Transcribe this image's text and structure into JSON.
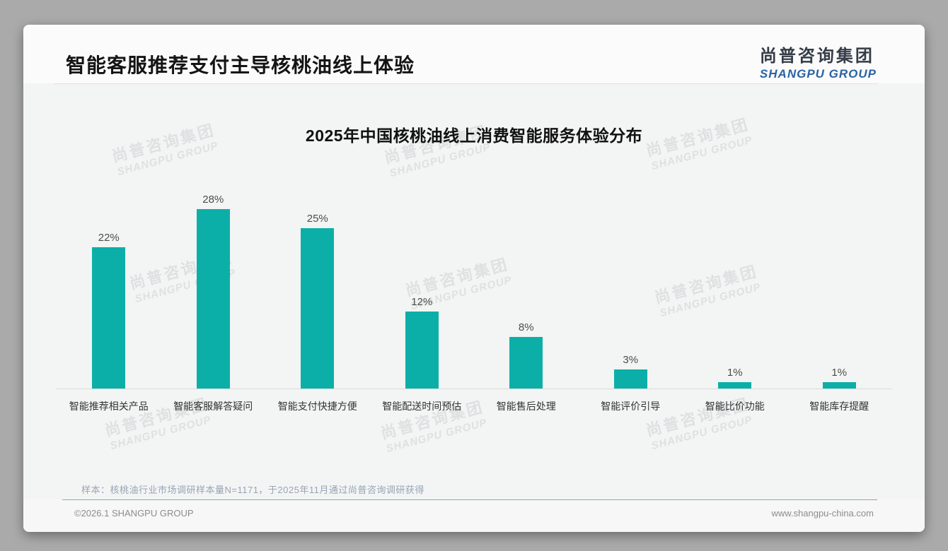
{
  "header": {
    "title": "智能客服推荐支付主导核桃油线上体验",
    "logo": {
      "cn": "尚普咨询集团",
      "en": "SHANGPU GROUP"
    }
  },
  "chart_data": {
    "type": "bar",
    "title": "2025年中国核桃油线上消费智能服务体验分布",
    "categories": [
      "智能推荐相关产品",
      "智能客服解答疑问",
      "智能支付快捷方便",
      "智能配送时间预估",
      "智能售后处理",
      "智能评价引导",
      "智能比价功能",
      "智能库存提醒"
    ],
    "values": [
      22,
      28,
      25,
      12,
      8,
      3,
      1,
      1
    ],
    "value_labels": [
      "22%",
      "28%",
      "25%",
      "12%",
      "8%",
      "3%",
      "1%",
      "1%"
    ],
    "unit": "%",
    "ylim": [
      0,
      30
    ],
    "grid": false,
    "legend": null,
    "bar_color": "#0cafa8",
    "xlabel": "",
    "ylabel": ""
  },
  "footnote": "样本：核桃油行业市场调研样本量N=1171，于2025年11月通过尚普咨询调研获得",
  "footer": {
    "copyright": "©2026.1 SHANGPU GROUP",
    "website": "www.shangpu-china.com"
  },
  "watermark": {
    "cn": "尚普咨询集团",
    "en": "SHANGPU GROUP"
  }
}
